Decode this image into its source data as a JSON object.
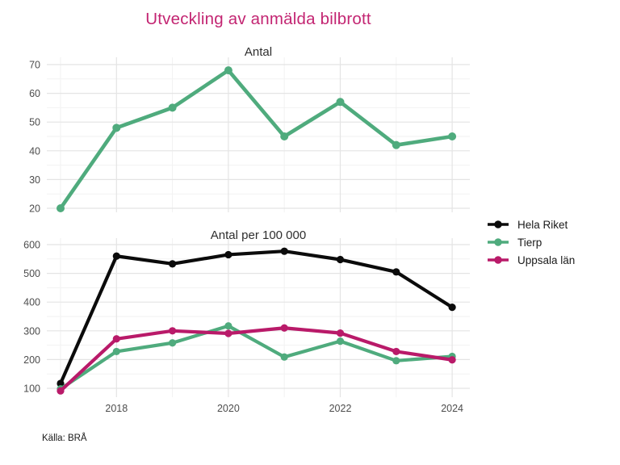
{
  "title": "Utveckling av anmälda bilbrott",
  "title_color": "#C32572",
  "caption": "Källa: BRÅ",
  "colors": {
    "hela_riket": "#0B0B0B",
    "tierp": "#4FAB7D",
    "uppsala_lan": "#B91A69",
    "grid_major": "#E4E4E4",
    "grid_minor": "#F2F2F2",
    "tick_text": "#4D4D4D"
  },
  "legend": {
    "items": [
      {
        "label": "Hela Riket",
        "color": "#0B0B0B"
      },
      {
        "label": "Tierp",
        "color": "#4FAB7D"
      },
      {
        "label": "Uppsala län",
        "color": "#B91A69"
      }
    ]
  },
  "chart_data": [
    {
      "type": "line",
      "title": "Antal",
      "x": [
        2017,
        2018,
        2019,
        2020,
        2021,
        2022,
        2023,
        2024
      ],
      "xticks": [
        2018,
        2020,
        2022,
        2024
      ],
      "yticks": [
        20,
        30,
        40,
        50,
        60,
        70
      ],
      "ylim": [
        20,
        70
      ],
      "grid": true,
      "legend_position": "right",
      "series": [
        {
          "name": "Tierp",
          "color": "#4FAB7D",
          "values": [
            20,
            48,
            55,
            68,
            45,
            57,
            42,
            45
          ]
        }
      ]
    },
    {
      "type": "line",
      "title": "Antal per 100 000",
      "x": [
        2017,
        2018,
        2019,
        2020,
        2021,
        2022,
        2023,
        2024
      ],
      "xticks": [
        2018,
        2020,
        2022,
        2024
      ],
      "yticks": [
        100,
        200,
        300,
        400,
        500,
        600
      ],
      "ylim": [
        100,
        600
      ],
      "grid": true,
      "legend_position": "right",
      "series": [
        {
          "name": "Hela Riket",
          "color": "#0B0B0B",
          "values": [
            117,
            560,
            533,
            565,
            577,
            548,
            505,
            382
          ]
        },
        {
          "name": "Tierp",
          "color": "#4FAB7D",
          "values": [
            98,
            228,
            258,
            317,
            209,
            264,
            196,
            211
          ]
        },
        {
          "name": "Uppsala län",
          "color": "#B91A69",
          "values": [
            91,
            272,
            300,
            291,
            310,
            292,
            228,
            199
          ]
        }
      ]
    }
  ]
}
